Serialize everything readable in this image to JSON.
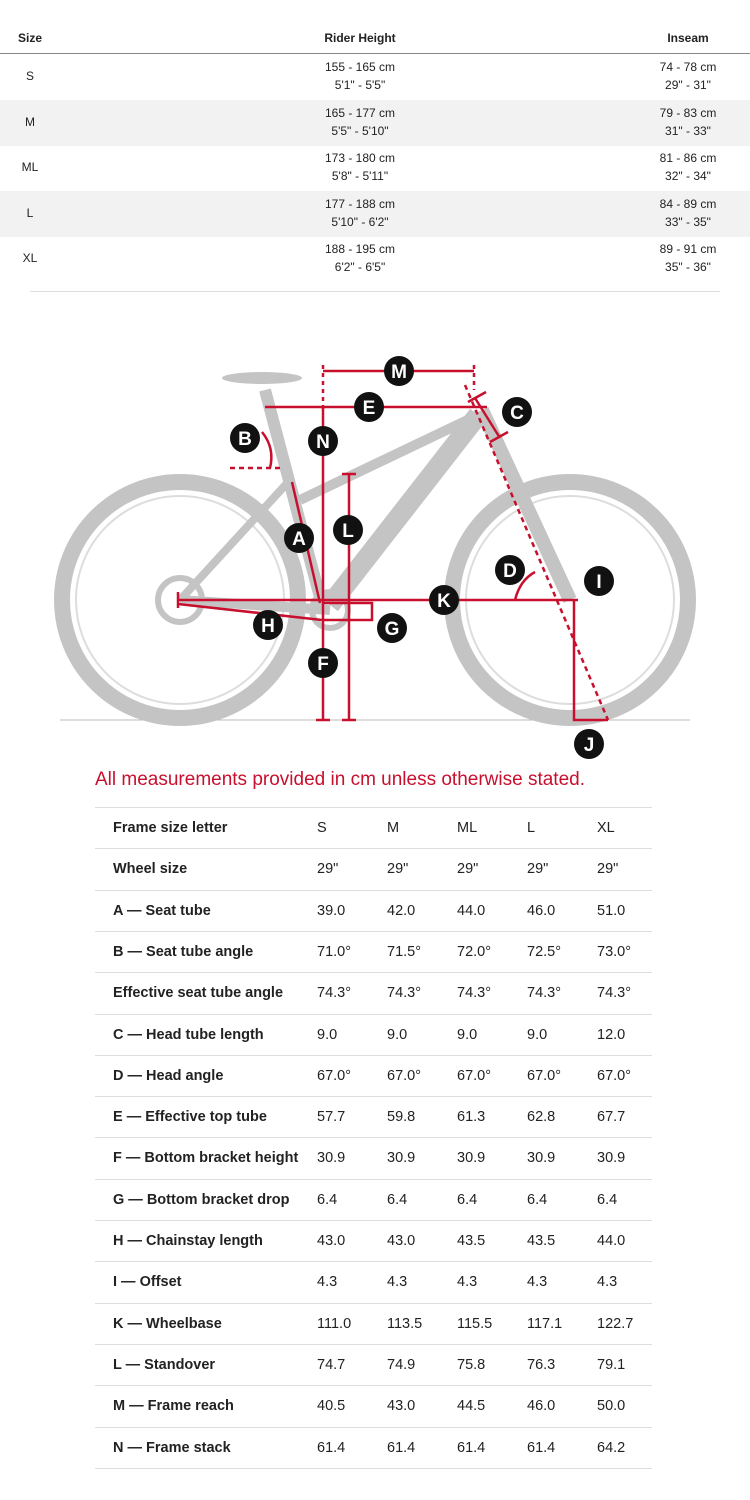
{
  "size_table": {
    "headers": [
      "Size",
      "Rider Height",
      "Inseam"
    ],
    "rows": [
      [
        "S",
        "155 - 165 cm",
        "5'1\" - 5'5\"",
        "74 - 78 cm",
        "29\" - 31\""
      ],
      [
        "M",
        "165 - 177 cm",
        "5'5\" - 5'10\"",
        "79 - 83 cm",
        "31\" - 33\""
      ],
      [
        "ML",
        "173 - 180 cm",
        "5'8\" - 5'11\"",
        "81 - 86 cm",
        "32\" - 34\""
      ],
      [
        "L",
        "177 - 188 cm",
        "5'10\" - 6'2\"",
        "84 - 89 cm",
        "33\" - 35\""
      ],
      [
        "XL",
        "188 - 195 cm",
        "6'2\" - 6'5\"",
        "89 - 91 cm",
        "35\" - 36\""
      ]
    ]
  },
  "diagram": {
    "labels": [
      "M",
      "E",
      "C",
      "B",
      "N",
      "L",
      "A",
      "D",
      "I",
      "K",
      "H",
      "G",
      "F",
      "J"
    ]
  },
  "note": "All measurements provided in cm unless otherwise stated.",
  "geometry_table": {
    "header": [
      "Frame size letter",
      "S",
      "M",
      "ML",
      "L",
      "XL"
    ],
    "rows": [
      [
        "Wheel size",
        "29\"",
        "29\"",
        "29\"",
        "29\"",
        "29\""
      ],
      [
        "A — Seat tube",
        "39.0",
        "42.0",
        "44.0",
        "46.0",
        "51.0"
      ],
      [
        "B — Seat tube angle",
        "71.0°",
        "71.5°",
        "72.0°",
        "72.5°",
        "73.0°"
      ],
      [
        "Effective seat tube angle",
        "74.3°",
        "74.3°",
        "74.3°",
        "74.3°",
        "74.3°"
      ],
      [
        "C — Head tube length",
        "9.0",
        "9.0",
        "9.0",
        "9.0",
        "12.0"
      ],
      [
        "D — Head angle",
        "67.0°",
        "67.0°",
        "67.0°",
        "67.0°",
        "67.0°"
      ],
      [
        "E — Effective top tube",
        "57.7",
        "59.8",
        "61.3",
        "62.8",
        "67.7"
      ],
      [
        "F — Bottom bracket height",
        "30.9",
        "30.9",
        "30.9",
        "30.9",
        "30.9"
      ],
      [
        "G — Bottom bracket drop",
        "6.4",
        "6.4",
        "6.4",
        "6.4",
        "6.4"
      ],
      [
        "H — Chainstay length",
        "43.0",
        "43.0",
        "43.5",
        "43.5",
        "44.0"
      ],
      [
        "I — Offset",
        "4.3",
        "4.3",
        "4.3",
        "4.3",
        "4.3"
      ],
      [
        "K — Wheelbase",
        "111.0",
        "113.5",
        "115.5",
        "117.1",
        "122.7"
      ],
      [
        "L — Standover",
        "74.7",
        "74.9",
        "75.8",
        "76.3",
        "79.1"
      ],
      [
        "M — Frame reach",
        "40.5",
        "43.0",
        "44.5",
        "46.0",
        "50.0"
      ],
      [
        "N — Frame stack",
        "61.4",
        "61.4",
        "61.4",
        "61.4",
        "64.2"
      ]
    ]
  }
}
